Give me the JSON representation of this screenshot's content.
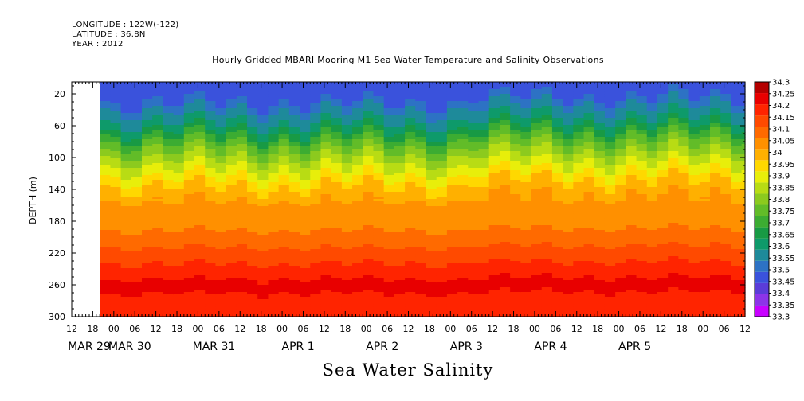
{
  "header": {
    "longitude": "LONGITUDE : 122W(-122)",
    "latitude": "LATITUDE : 36.8N",
    "year": "YEAR : 2012"
  },
  "chart_data": {
    "type": "heatmap",
    "title": "Hourly Gridded MBARI Mooring M1 Sea Water Temperature and Salinity Observations",
    "xlabel": "",
    "ylabel": "DEPTH (m)",
    "colorbar_label": "Sea Water Salinity",
    "y_ticks": [
      20,
      60,
      100,
      140,
      180,
      220,
      260,
      300
    ],
    "ylim": [
      300,
      5
    ],
    "x_hour_labels": [
      "12",
      "18",
      "00",
      "06",
      "12",
      "18",
      "00",
      "06",
      "12",
      "18",
      "00",
      "06",
      "12",
      "18",
      "00",
      "06",
      "12",
      "18",
      "00",
      "06",
      "12",
      "18",
      "00",
      "06",
      "12",
      "18",
      "00",
      "06",
      "12",
      "18",
      "00",
      "06",
      "12"
    ],
    "x_date_labels": [
      "MAR 29",
      "MAR 30",
      "MAR 31",
      "APR  1",
      "APR  2",
      "APR  3",
      "APR  4",
      "APR  5"
    ],
    "colorbar_levels": [
      "33.3",
      "33.35",
      "33.4",
      "33.45",
      "33.5",
      "33.55",
      "33.6",
      "33.65",
      "33.7",
      "33.75",
      "33.8",
      "33.85",
      "33.9",
      "33.95",
      "34",
      "34.05",
      "34.1",
      "34.15",
      "34.2",
      "34.25",
      "34.3"
    ],
    "colorbar_colors": [
      "#c800ff",
      "#8c34e8",
      "#5a3cd8",
      "#3a52dc",
      "#2d72c4",
      "#1e8a9a",
      "#0e9a6a",
      "#189a44",
      "#3cac32",
      "#62bc28",
      "#8cca1e",
      "#b8dc14",
      "#e8ee0a",
      "#ffd800",
      "#ffb000",
      "#ff9000",
      "#ff6a00",
      "#ff4a00",
      "#ff2400",
      "#e80000",
      "#b40000"
    ],
    "data_start_hour_offset": 8,
    "depth_profile_mean": [
      {
        "depth": 5,
        "salinity": 33.45
      },
      {
        "depth": 20,
        "salinity": 33.45
      },
      {
        "depth": 40,
        "salinity": 33.55
      },
      {
        "depth": 60,
        "salinity": 33.62
      },
      {
        "depth": 80,
        "salinity": 33.75
      },
      {
        "depth": 100,
        "salinity": 33.85
      },
      {
        "depth": 120,
        "salinity": 33.93
      },
      {
        "depth": 140,
        "salinity": 34.02
      },
      {
        "depth": 160,
        "salinity": 34.06
      },
      {
        "depth": 180,
        "salinity": 34.08
      },
      {
        "depth": 200,
        "salinity": 34.12
      },
      {
        "depth": 220,
        "salinity": 34.17
      },
      {
        "depth": 240,
        "salinity": 34.22
      },
      {
        "depth": 260,
        "salinity": 34.27
      },
      {
        "depth": 280,
        "salinity": 34.23
      },
      {
        "depth": 300,
        "salinity": 34.2
      }
    ]
  }
}
